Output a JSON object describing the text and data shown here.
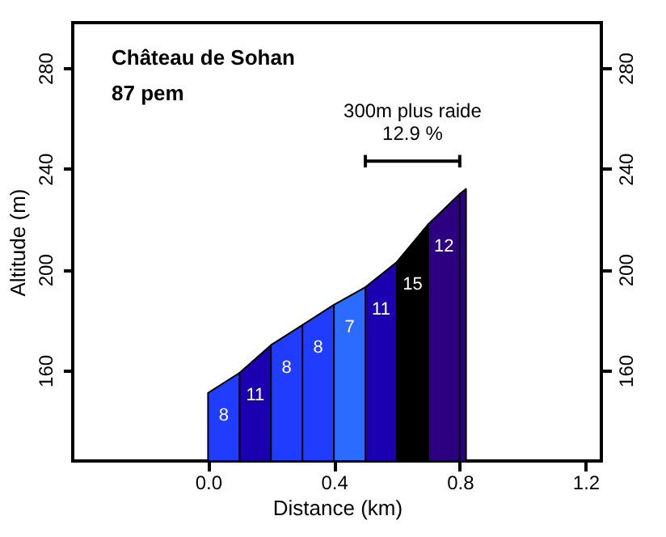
{
  "chart_data": {
    "type": "area",
    "title": "Château de Sohan",
    "subtitle": "87 pem",
    "xlabel": "Distance (km)",
    "ylabel": "Altitude (m)",
    "series": [
      {
        "name": "8",
        "color": "#1f3cff",
        "x": [
          0,
          0.1
        ],
        "values": [
          151,
          159
        ]
      },
      {
        "name": "11",
        "color": "#1a00b0",
        "x": [
          0.1,
          0.2
        ],
        "values": [
          159,
          170
        ]
      },
      {
        "name": "8",
        "color": "#1f3cff",
        "x": [
          0.2,
          0.3
        ],
        "values": [
          170,
          178
        ]
      },
      {
        "name": "8",
        "color": "#1f3cff",
        "x": [
          0.3,
          0.4
        ],
        "values": [
          178,
          186
        ]
      },
      {
        "name": "7",
        "color": "#2b6bff",
        "x": [
          0.4,
          0.5
        ],
        "values": [
          186,
          193
        ]
      },
      {
        "name": "11",
        "color": "#1a00b0",
        "x": [
          0.5,
          0.6
        ],
        "values": [
          193,
          203
        ]
      },
      {
        "name": "15",
        "color": "#000000",
        "x": [
          0.6,
          0.7
        ],
        "values": [
          203,
          218
        ]
      },
      {
        "name": "12",
        "color": "#2c0080",
        "x": [
          0.7,
          0.8
        ],
        "values": [
          218,
          230
        ]
      },
      {
        "color": "#2c0080",
        "x": [
          0.8,
          0.82
        ],
        "values": [
          230,
          232
        ]
      },
      {
        "type": "line",
        "color": "#000000",
        "x": [
          0.5,
          0.8
        ],
        "values": [
          243,
          243
        ]
      }
    ],
    "annotations": [
      "300m plus raide",
      "12.9 %"
    ],
    "xlim": [
      -0.43,
      1.25
    ],
    "xticks": [
      {
        "value": 0,
        "label": "0.0"
      },
      {
        "value": 0.4,
        "label": "0.4"
      },
      {
        "value": 0.8,
        "label": "0.8"
      },
      {
        "value": 1.2,
        "label": "1.2"
      }
    ],
    "ylim": [
      124,
      298
    ],
    "yticks": [
      160,
      200,
      240,
      280
    ],
    "y2lim": [
      124,
      298
    ],
    "y2ticks": [
      160,
      200,
      240,
      280
    ],
    "grid": false,
    "legend": false
  }
}
